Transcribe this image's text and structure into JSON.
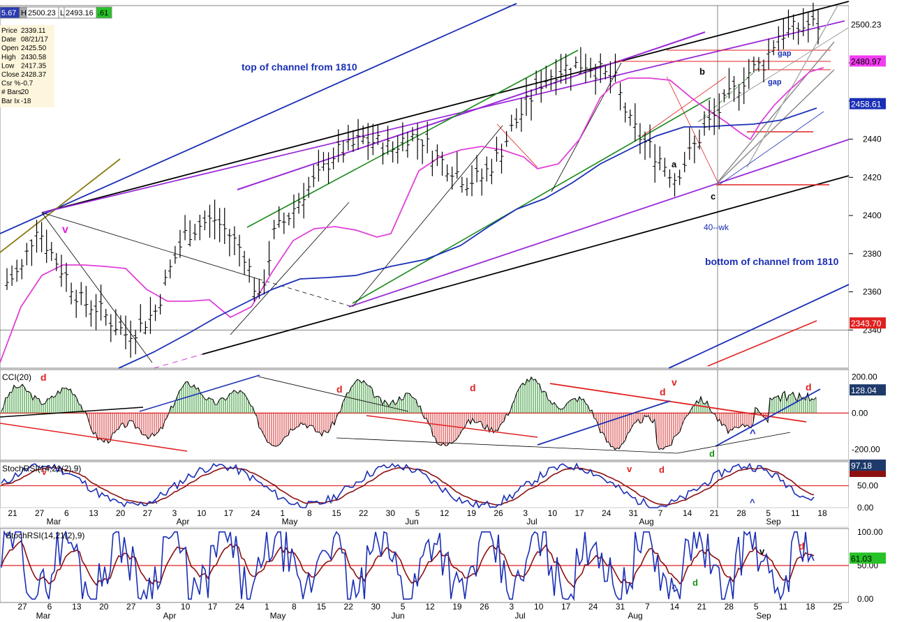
{
  "topbar": [
    {
      "text": "5.67",
      "bg": "#2b3bb0",
      "fg": "#ffffff"
    },
    {
      "text": "H",
      "bg": "#aaaaaa",
      "fg": "#000000"
    },
    {
      "text": "2500.23",
      "bg": "#ffffff",
      "fg": "#000000"
    },
    {
      "text": "L",
      "bg": "#ffffff",
      "fg": "#000000"
    },
    {
      "text": "2493.16",
      "bg": "#ffffff",
      "fg": "#000000"
    },
    {
      "text": ".61",
      "bg": "#27c227",
      "fg": "#000000"
    }
  ],
  "info": [
    [
      "Price",
      "2339.11"
    ],
    [
      "Date",
      "08/21/17"
    ],
    [
      "Open",
      "2425.50"
    ],
    [
      "High",
      "2430.58"
    ],
    [
      "Low",
      "2417.35"
    ],
    [
      "Close",
      "2428.37"
    ],
    [
      "Csr %",
      "-0.7"
    ],
    [
      "# Bars",
      "20"
    ],
    [
      "Bar Ix",
      "-18"
    ]
  ],
  "axis_labels": {
    "date_ticks": [
      "21",
      "27",
      "6",
      "13",
      "20",
      "27",
      "3",
      "10",
      "17",
      "24",
      "1",
      "8",
      "15",
      "22",
      "30",
      "5",
      "12",
      "19",
      "26",
      "3",
      "10",
      "17",
      "24",
      "31",
      "7",
      "14",
      "21",
      "28",
      "5",
      "11",
      "18"
    ],
    "months": [
      "Mar",
      "Apr",
      "May",
      "Jun",
      "Jul",
      "Aug",
      "Sep"
    ],
    "date_ticks_bottom": [
      "27",
      "6",
      "13",
      "20",
      "27",
      "3",
      "10",
      "17",
      "24",
      "1",
      "8",
      "15",
      "22",
      "30",
      "5",
      "12",
      "19",
      "26",
      "3",
      "10",
      "17",
      "24",
      "31",
      "7",
      "14",
      "21",
      "28",
      "5",
      "11",
      "18",
      "25"
    ],
    "months_bottom": [
      "Mar",
      "Apr",
      "May",
      "Jun",
      "Jul",
      "Aug",
      "Sep"
    ]
  },
  "price_badges": [
    {
      "text": "2500.23",
      "bg": "#ffffff",
      "fg": "#000000",
      "value": 2500.23
    },
    {
      "text": "2480.97",
      "bg": "#f23cf2",
      "fg": "#000000",
      "value": 2480.97
    },
    {
      "text": "2458.61",
      "bg": "#1a2fb5",
      "fg": "#ffffff",
      "value": 2458.61
    },
    {
      "text": "2343.70",
      "bg": "#e02020",
      "fg": "#ffffff",
      "value": 2343.7
    }
  ],
  "annotations": {
    "top_channel": "top of channel from 1810",
    "bottom_channel": "bottom of channel from 1810",
    "wk40": "40--wk",
    "a": "a",
    "b": "b",
    "c": "c",
    "gap1": "gap",
    "gap2": "gap",
    "v_price": "v",
    "cci_d1": "d",
    "cci_d2": "d",
    "cci_d3": "d",
    "cci_d4": "d",
    "cci_d5": "d",
    "cci_v": "v",
    "cci_up": "^",
    "cci_dgreen": "d",
    "st_v1": "v",
    "st_d1": "d",
    "st_v2": "v",
    "st_d2": "d",
    "st_up1": "^",
    "st_up2": "^",
    "b_up": "^",
    "b_d": "d",
    "b_v": "v",
    "b_d2": "d"
  },
  "chart_data": [
    {
      "type": "line",
      "panel": "price",
      "ylim": [
        2320,
        2510
      ],
      "yticks": [
        2340,
        2360,
        2380,
        2400,
        2420,
        2440,
        2460,
        2480
      ],
      "sample_closes": [
        2365,
        2372,
        2395,
        2380,
        2368,
        2355,
        2352,
        2345,
        2338,
        2342,
        2350,
        2372,
        2390,
        2395,
        2398,
        2390,
        2380,
        2355,
        2390,
        2400,
        2412,
        2420,
        2432,
        2435,
        2440,
        2438,
        2435,
        2442,
        2440,
        2430,
        2425,
        2418,
        2420,
        2430,
        2445,
        2458,
        2470,
        2476,
        2478,
        2480,
        2475,
        2470,
        2448,
        2438,
        2430,
        2420,
        2432,
        2445,
        2455,
        2465,
        2475,
        2480,
        2495,
        2497,
        2500
      ]
    },
    {
      "type": "bar",
      "panel": "cci",
      "title": "CCI(20)",
      "yticks": [
        200,
        0,
        -200
      ],
      "ytick_labels": [
        "200.00",
        "0.00",
        "-200.00"
      ],
      "last": "128.04",
      "ylim": [
        -260,
        240
      ]
    },
    {
      "type": "line",
      "panel": "stochrsi_1",
      "title": "StochRSI(14,21(2),9)",
      "yticks": [
        50,
        0
      ],
      "ytick_labels": [
        "50.00",
        "0.00"
      ],
      "last_blue": "97.18",
      "ylim": [
        0,
        105
      ]
    },
    {
      "type": "line",
      "panel": "stochrsi_2",
      "title": "StochRSI(14,21(2),9)",
      "yticks": [
        100,
        50,
        0
      ],
      "ytick_labels": [
        "100.00",
        "50.00",
        "0.00"
      ],
      "last": "61.03",
      "ylim": [
        -5,
        105
      ]
    }
  ]
}
